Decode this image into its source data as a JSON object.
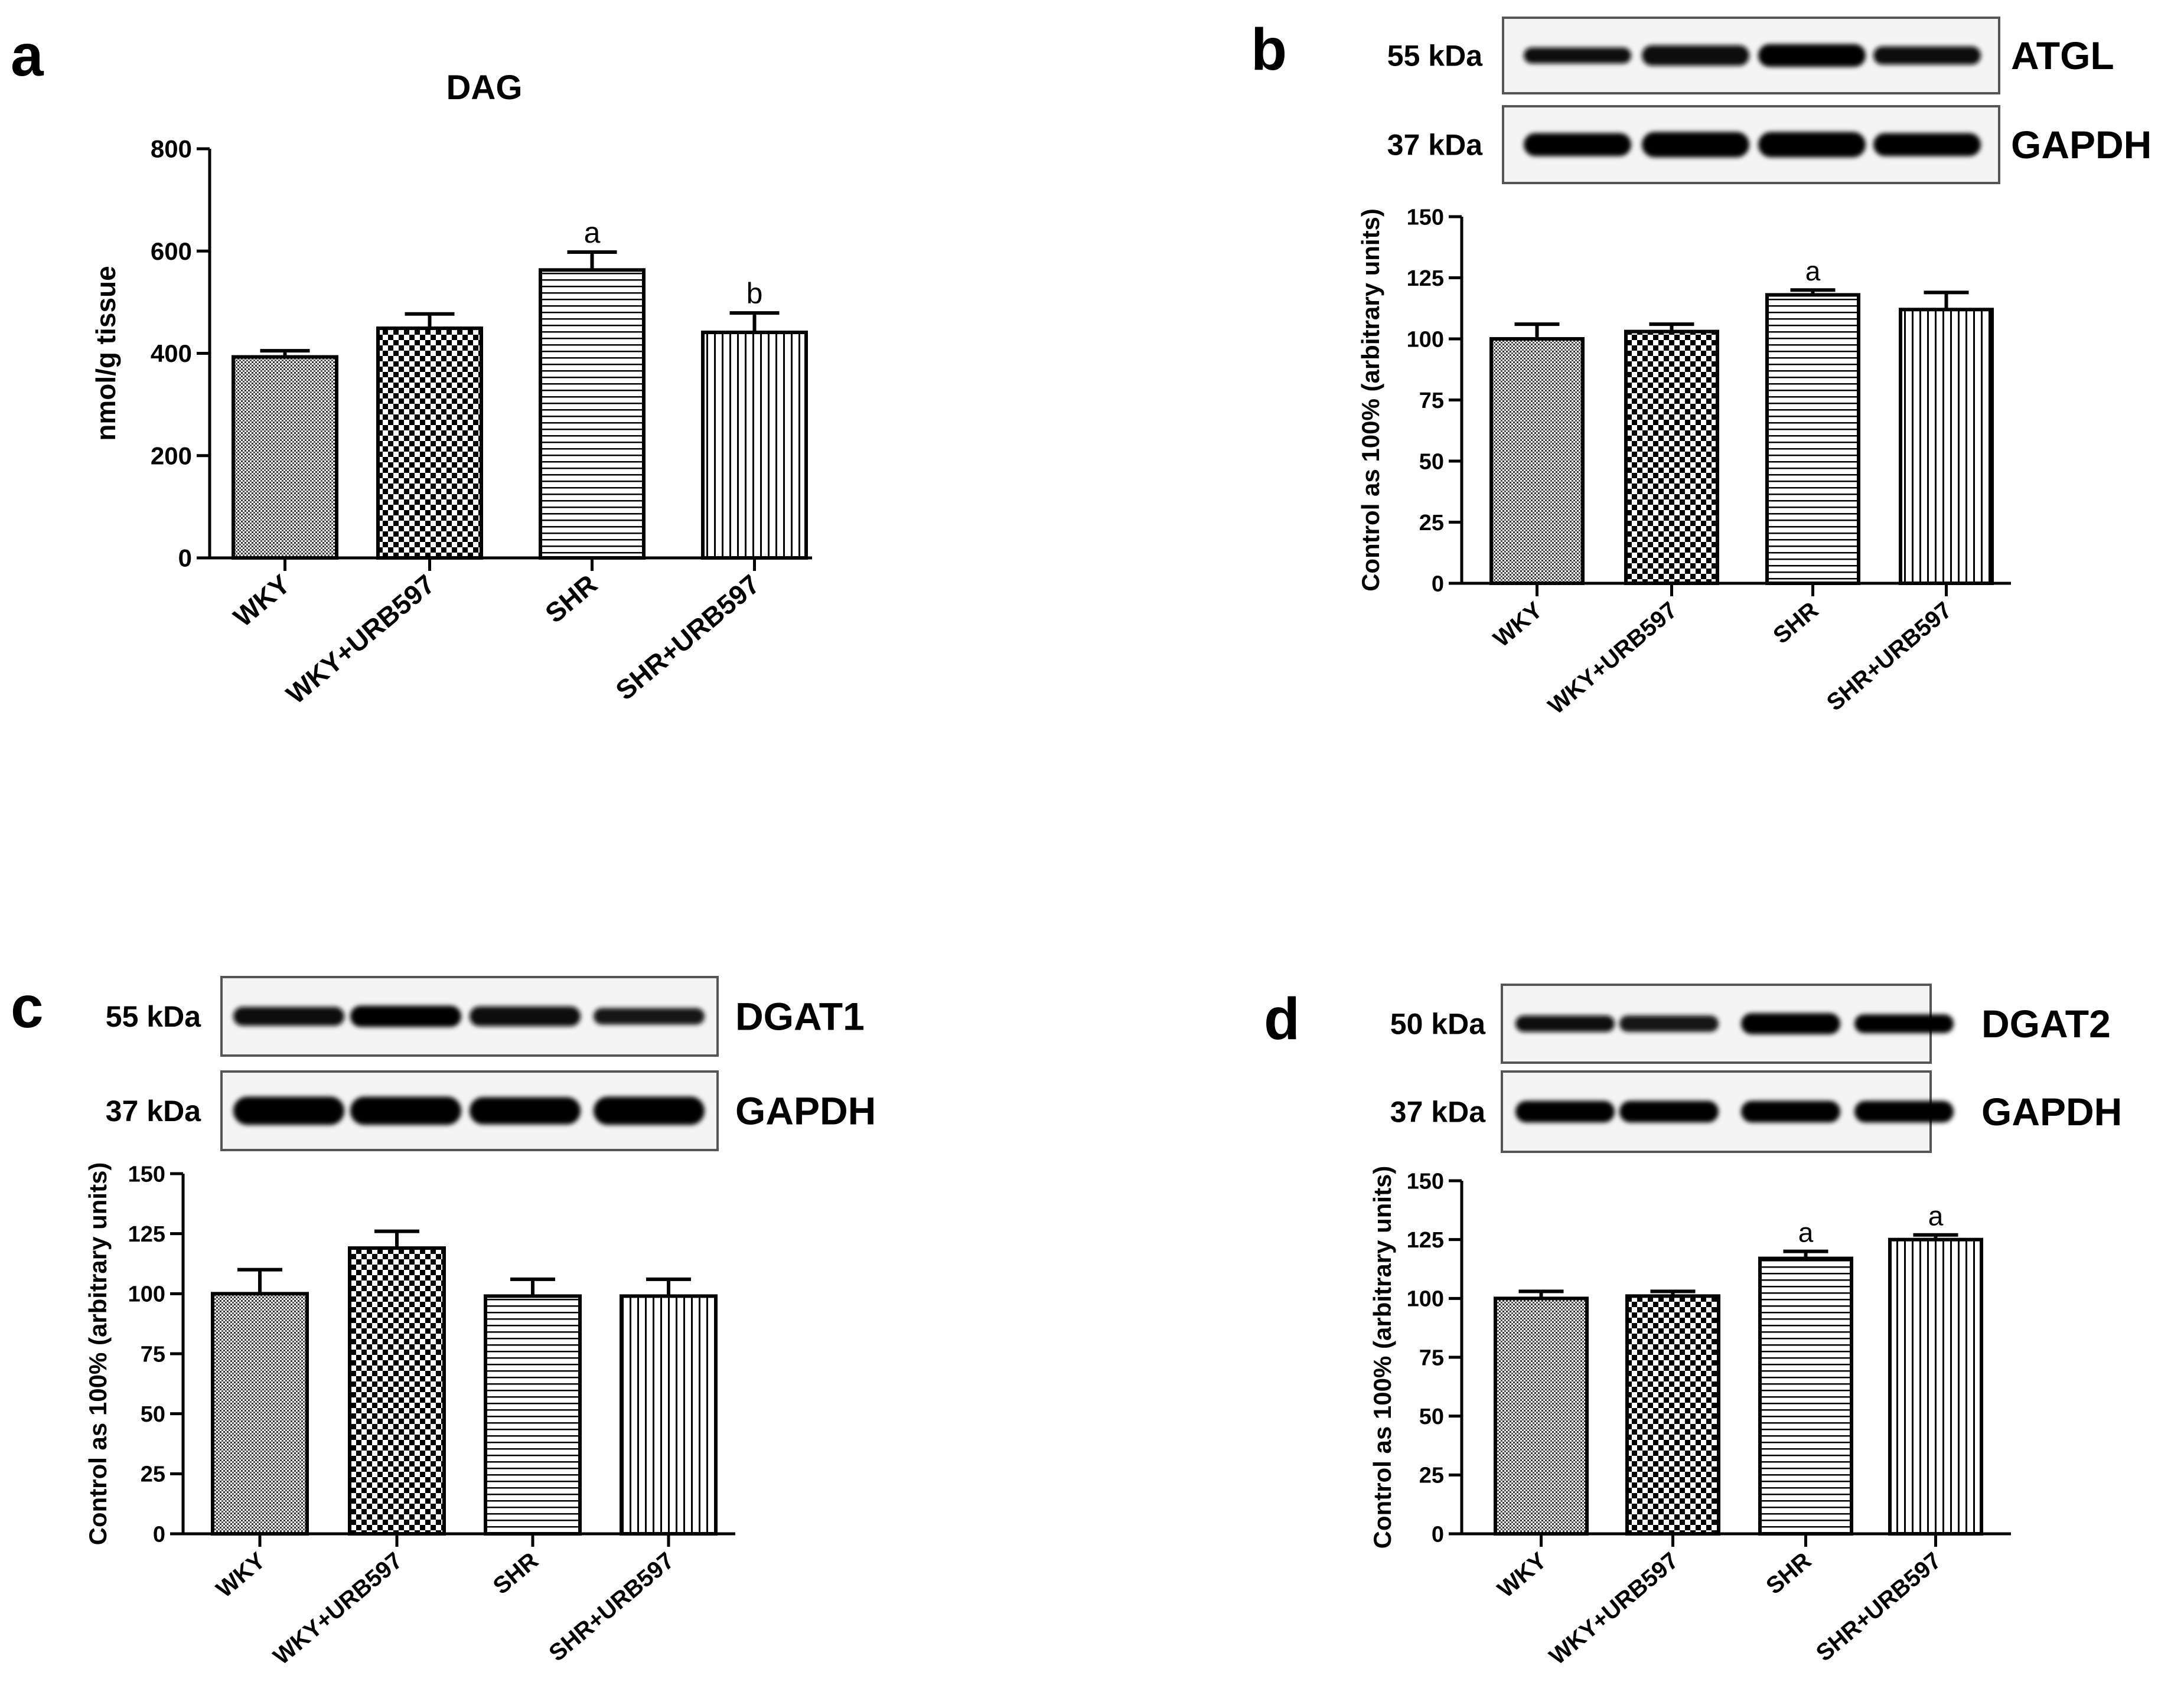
{
  "chart_data": [
    {
      "panel": "a",
      "type": "bar",
      "title": "DAG",
      "ylabel": "nmol/g tissue",
      "xlabel": "",
      "ylim": [
        0,
        800
      ],
      "yticks": [
        0,
        200,
        400,
        600,
        800
      ],
      "categories": [
        "WKY",
        "WKY+URB597",
        "SHR",
        "SHR+URB597"
      ],
      "values": [
        393,
        449,
        563,
        441
      ],
      "errors": [
        12,
        28,
        35,
        38
      ],
      "annotations": [
        "",
        "",
        "a",
        "b"
      ],
      "patterns": [
        "fine-grid",
        "checker",
        "horizontal",
        "vertical"
      ],
      "blots": []
    },
    {
      "panel": "b",
      "type": "bar",
      "title": "",
      "ylabel": "Control as 100% (arbitrary units)",
      "xlabel": "",
      "ylim": [
        0,
        150
      ],
      "yticks": [
        0,
        25,
        50,
        75,
        100,
        125,
        150
      ],
      "categories": [
        "WKY",
        "WKY+URB597",
        "SHR",
        "SHR+URB597"
      ],
      "values": [
        100,
        103,
        118,
        112
      ],
      "errors": [
        6,
        3,
        2,
        7
      ],
      "annotations": [
        "",
        "",
        "a",
        ""
      ],
      "patterns": [
        "fine-grid",
        "checker",
        "horizontal",
        "vertical"
      ],
      "blots": [
        {
          "kda": "55 kDa",
          "protein": "ATGL",
          "intensity": [
            0.85,
            0.8,
            0.95,
            0.85
          ],
          "thickness": [
            0.35,
            0.45,
            0.5,
            0.4
          ]
        },
        {
          "kda": "37 kDa",
          "protein": "GAPDH",
          "intensity": [
            1,
            1,
            1,
            1
          ],
          "thickness": [
            0.5,
            0.55,
            0.55,
            0.5
          ]
        }
      ]
    },
    {
      "panel": "c",
      "type": "bar",
      "title": "",
      "ylabel": "Control as 100% (arbitrary units)",
      "xlabel": "",
      "ylim": [
        0,
        150
      ],
      "yticks": [
        0,
        25,
        50,
        75,
        100,
        125,
        150
      ],
      "categories": [
        "WKY",
        "WKY+URB597",
        "SHR",
        "SHR+URB597"
      ],
      "values": [
        100,
        119,
        99,
        99
      ],
      "errors": [
        10,
        7,
        7,
        7
      ],
      "annotations": [
        "",
        "",
        "",
        ""
      ],
      "patterns": [
        "fine-grid",
        "checker",
        "horizontal",
        "vertical"
      ],
      "blots": [
        {
          "kda": "55 kDa",
          "protein": "DGAT1",
          "intensity": [
            0.85,
            0.95,
            0.85,
            0.7
          ],
          "thickness": [
            0.4,
            0.45,
            0.42,
            0.35
          ]
        },
        {
          "kda": "37 kDa",
          "protein": "GAPDH",
          "intensity": [
            1,
            1,
            1,
            1
          ],
          "thickness": [
            0.6,
            0.6,
            0.58,
            0.6
          ]
        }
      ]
    },
    {
      "panel": "d",
      "type": "bar",
      "title": "",
      "ylabel": "Control as 100% (arbitrary units)",
      "xlabel": "",
      "ylim": [
        0,
        150
      ],
      "yticks": [
        0,
        25,
        50,
        75,
        100,
        125,
        150
      ],
      "categories": [
        "WKY",
        "WKY+URB597",
        "SHR",
        "SHR+URB597"
      ],
      "values": [
        100,
        101,
        117,
        125
      ],
      "errors": [
        3,
        2,
        3,
        2
      ],
      "annotations": [
        "",
        "",
        "a",
        "a"
      ],
      "patterns": [
        "fine-grid",
        "checker",
        "horizontal",
        "vertical"
      ],
      "blots": [
        {
          "kda": "50 kDa",
          "protein": "DGAT2",
          "intensity": [
            0.85,
            0.7,
            0.95,
            0.9
          ],
          "thickness": [
            0.35,
            0.35,
            0.45,
            0.4
          ]
        },
        {
          "kda": "37 kDa",
          "protein": "GAPDH",
          "intensity": [
            1,
            1,
            1,
            1
          ],
          "thickness": [
            0.45,
            0.45,
            0.45,
            0.45
          ]
        }
      ]
    }
  ]
}
